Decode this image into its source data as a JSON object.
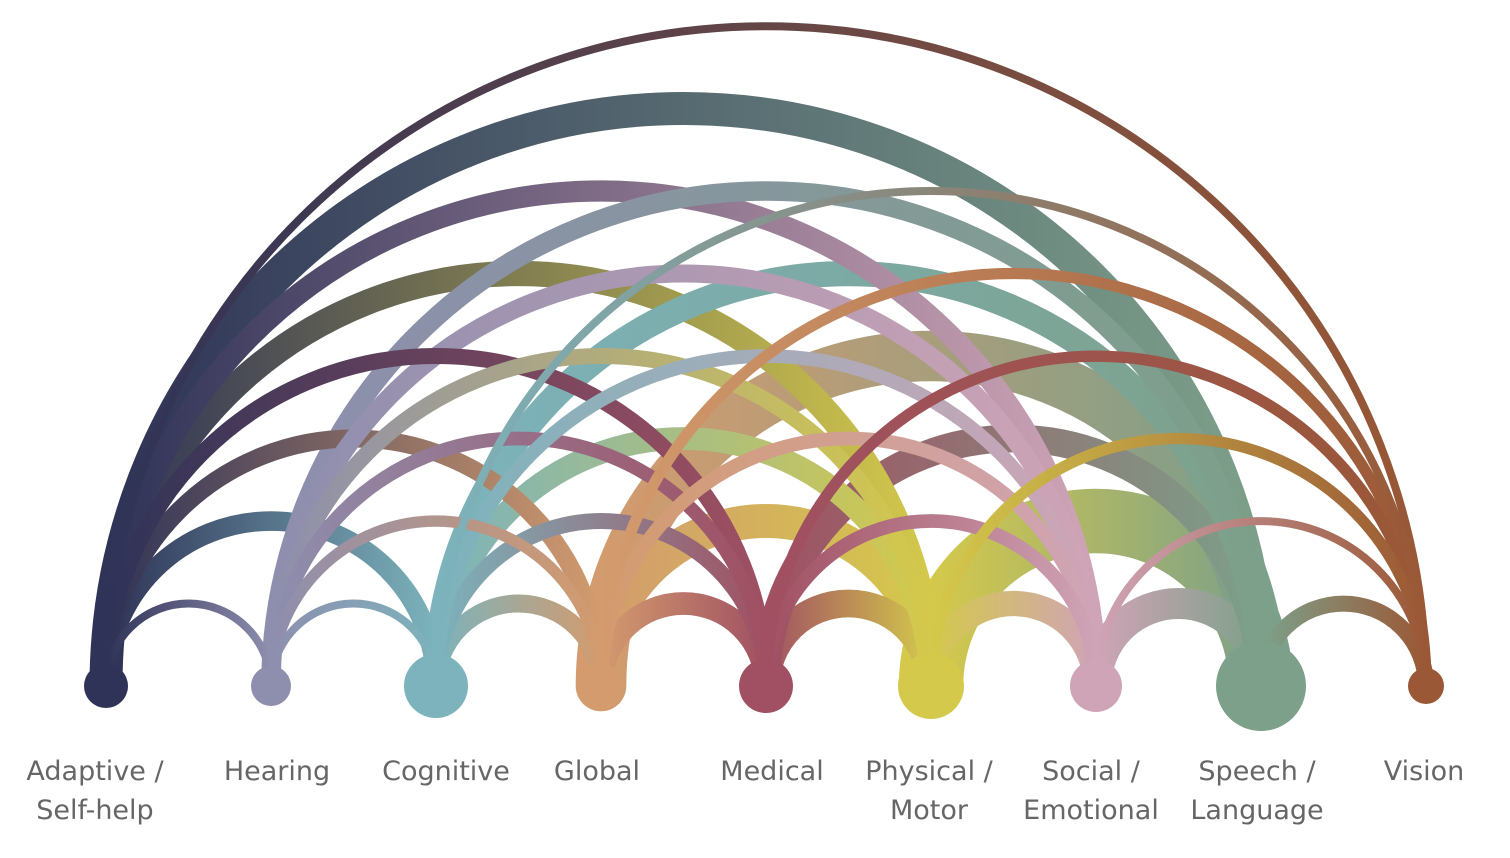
{
  "diagram": {
    "type": "arc-diagram",
    "nodes": [
      {
        "id": "adaptive",
        "lines": [
          "Adaptive /",
          "Self-help"
        ],
        "color": "#2f3357",
        "size": 22
      },
      {
        "id": "hearing",
        "lines": [
          "Hearing"
        ],
        "color": "#8e8eae",
        "size": 20
      },
      {
        "id": "cognitive",
        "lines": [
          "Cognitive"
        ],
        "color": "#7cb3bc",
        "size": 32
      },
      {
        "id": "global",
        "lines": [
          "Global"
        ],
        "color": "#d39b6e",
        "size": 22
      },
      {
        "id": "medical",
        "lines": [
          "Medical"
        ],
        "color": "#a05062",
        "size": 27
      },
      {
        "id": "physical",
        "lines": [
          "Physical /",
          "Motor"
        ],
        "color": "#d4c94b",
        "size": 33
      },
      {
        "id": "social",
        "lines": [
          "Social /",
          "Emotional"
        ],
        "color": "#cfa4b6",
        "size": 26
      },
      {
        "id": "speech",
        "lines": [
          "Speech /",
          "Language"
        ],
        "color": "#7da08a",
        "size": 45
      },
      {
        "id": "vision",
        "lines": [
          "Vision"
        ],
        "color": "#9a5836",
        "size": 18
      }
    ],
    "links": [
      {
        "source": "adaptive",
        "target": "hearing",
        "weight": 1
      },
      {
        "source": "adaptive",
        "target": "cognitive",
        "weight": 6
      },
      {
        "source": "adaptive",
        "target": "global",
        "weight": 5
      },
      {
        "source": "adaptive",
        "target": "medical",
        "weight": 4
      },
      {
        "source": "adaptive",
        "target": "physical",
        "weight": 10
      },
      {
        "source": "adaptive",
        "target": "social",
        "weight": 7
      },
      {
        "source": "adaptive",
        "target": "speech",
        "weight": 17
      },
      {
        "source": "adaptive",
        "target": "vision",
        "weight": 1
      },
      {
        "source": "hearing",
        "target": "cognitive",
        "weight": 1
      },
      {
        "source": "hearing",
        "target": "global",
        "weight": 2
      },
      {
        "source": "hearing",
        "target": "medical",
        "weight": 3
      },
      {
        "source": "hearing",
        "target": "physical",
        "weight": 4
      },
      {
        "source": "hearing",
        "target": "social",
        "weight": 5
      },
      {
        "source": "hearing",
        "target": "speech",
        "weight": 6
      },
      {
        "source": "cognitive",
        "target": "global",
        "weight": 5
      },
      {
        "source": "cognitive",
        "target": "medical",
        "weight": 4
      },
      {
        "source": "cognitive",
        "target": "physical",
        "weight": 8
      },
      {
        "source": "cognitive",
        "target": "social",
        "weight": 3
      },
      {
        "source": "cognitive",
        "target": "speech",
        "weight": 10
      },
      {
        "source": "cognitive",
        "target": "vision",
        "weight": 1
      },
      {
        "source": "global",
        "target": "medical",
        "weight": 8
      },
      {
        "source": "global",
        "target": "physical",
        "weight": 18
      },
      {
        "source": "global",
        "target": "social",
        "weight": 3
      },
      {
        "source": "global",
        "target": "speech",
        "weight": 40
      },
      {
        "source": "global",
        "target": "vision",
        "weight": 2
      },
      {
        "source": "medical",
        "target": "physical",
        "weight": 12
      },
      {
        "source": "medical",
        "target": "social",
        "weight": 3
      },
      {
        "source": "medical",
        "target": "speech",
        "weight": 12
      },
      {
        "source": "medical",
        "target": "vision",
        "weight": 2
      },
      {
        "source": "physical",
        "target": "social",
        "weight": 10
      },
      {
        "source": "physical",
        "target": "speech",
        "weight": 65
      },
      {
        "source": "physical",
        "target": "vision",
        "weight": 2
      },
      {
        "source": "social",
        "target": "speech",
        "weight": 15
      },
      {
        "source": "social",
        "target": "vision",
        "weight": 1
      },
      {
        "source": "speech",
        "target": "vision",
        "weight": 4
      }
    ]
  }
}
